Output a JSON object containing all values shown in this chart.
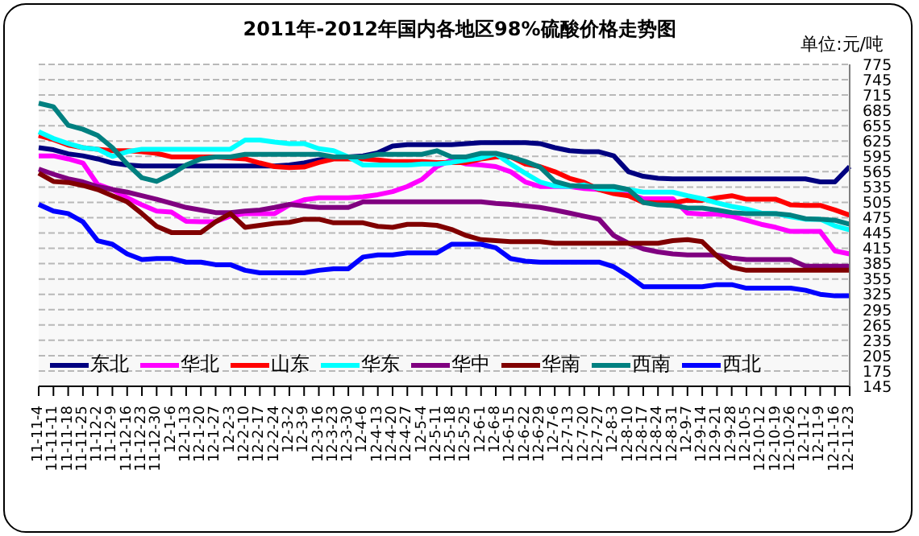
{
  "chart_data": {
    "type": "line",
    "title": "2011年-2012年国内各地区98%硫酸价格走势图",
    "annotations": [
      "单位:元/吨"
    ],
    "categories": [
      "11-11-4",
      "11-11-11",
      "11-11-18",
      "11-11-25",
      "11-12-2",
      "11-12-9",
      "11-12-16",
      "11-12-23",
      "11-12-30",
      "12-1-6",
      "12-1-13",
      "12-1-20",
      "12-1-27",
      "12-2-3",
      "12-2-10",
      "12-2-17",
      "12-2-24",
      "12-3-2",
      "12-3-9",
      "12-3-16",
      "12-3-23",
      "12-3-30",
      "12-4-6",
      "12-4-13",
      "12-4-20",
      "12-4-27",
      "12-5-4",
      "12-5-11",
      "12-5-18",
      "12-5-25",
      "12-6-1",
      "12-6-8",
      "12-6-15",
      "12-6-22",
      "12-6-29",
      "12-7-6",
      "12-7-13",
      "12-7-20",
      "12-7-27",
      "12-8-3",
      "12-8-10",
      "12-8-17",
      "12-8-24",
      "12-8-31",
      "12-9-7",
      "12-9-14",
      "12-9-21",
      "12-9-28",
      "12-10-5",
      "12-10-12",
      "12-10-19",
      "12-10-26",
      "12-11-2",
      "12-11-9",
      "12-11-16",
      "12-11-23"
    ],
    "series": [
      {
        "name": "东北",
        "color": "#000080",
        "values": [
          612,
          608,
          600,
          596,
          590,
          582,
          578,
          576,
          576,
          576,
          576,
          576,
          576,
          576,
          576,
          576,
          576,
          578,
          582,
          588,
          592,
          594,
          596,
          602,
          615,
          618,
          618,
          618,
          618,
          620,
          622,
          622,
          622,
          622,
          620,
          612,
          606,
          604,
          604,
          596,
          565,
          556,
          552,
          551,
          551,
          551,
          551,
          551,
          551,
          551,
          551,
          551,
          551,
          545,
          545,
          575
        ]
      },
      {
        "name": "华北",
        "color": "#ff00ff",
        "values": [
          596,
          596,
          590,
          582,
          540,
          530,
          514,
          500,
          488,
          486,
          468,
          467,
          467,
          478,
          483,
          483,
          483,
          500,
          510,
          514,
          514,
          514,
          516,
          520,
          526,
          536,
          550,
          575,
          588,
          580,
          578,
          575,
          565,
          545,
          536,
          536,
          536,
          532,
          530,
          530,
          522,
          512,
          512,
          512,
          484,
          482,
          482,
          478,
          470,
          462,
          456,
          448,
          448,
          448,
          410,
          404
        ]
      },
      {
        "name": "山东",
        "color": "#ff0000",
        "values": [
          636,
          628,
          617,
          612,
          609,
          606,
          606,
          604,
          601,
          594,
          594,
          594,
          594,
          592,
          590,
          582,
          575,
          573,
          574,
          583,
          590,
          590,
          590,
          588,
          585,
          585,
          585,
          583,
          583,
          583,
          590,
          594,
          594,
          580,
          575,
          565,
          552,
          544,
          530,
          522,
          518,
          505,
          504,
          504,
          509,
          509,
          514,
          518,
          511,
          511,
          511,
          500,
          499,
          499,
          490,
          480
        ]
      },
      {
        "name": "华东",
        "color": "#00ffff",
        "values": [
          643,
          630,
          620,
          612,
          609,
          595,
          604,
          609,
          609,
          609,
          609,
          609,
          609,
          609,
          627,
          627,
          623,
          620,
          620,
          610,
          606,
          594,
          578,
          578,
          578,
          578,
          580,
          580,
          583,
          588,
          592,
          600,
          580,
          562,
          545,
          537,
          536,
          539,
          532,
          530,
          530,
          525,
          525,
          525,
          518,
          512,
          504,
          497,
          492,
          484,
          483,
          477,
          472,
          472,
          459,
          451
        ]
      },
      {
        "name": "华中",
        "color": "#800080",
        "values": [
          570,
          560,
          551,
          545,
          536,
          530,
          525,
          518,
          511,
          503,
          495,
          490,
          485,
          485,
          488,
          490,
          495,
          501,
          498,
          495,
          495,
          495,
          506,
          506,
          506,
          506,
          506,
          506,
          506,
          506,
          506,
          503,
          501,
          498,
          495,
          490,
          484,
          478,
          472,
          440,
          425,
          414,
          408,
          404,
          402,
          402,
          402,
          396,
          393,
          393,
          393,
          393,
          380,
          380,
          380,
          380
        ]
      },
      {
        "name": "华南",
        "color": "#800000",
        "values": [
          562,
          546,
          544,
          538,
          530,
          518,
          506,
          483,
          458,
          446,
          446,
          446,
          467,
          483,
          456,
          460,
          464,
          466,
          472,
          472,
          465,
          465,
          465,
          458,
          456,
          462,
          462,
          460,
          452,
          440,
          432,
          430,
          428,
          428,
          428,
          425,
          425,
          425,
          425,
          425,
          425,
          425,
          425,
          430,
          432,
          428,
          400,
          378,
          372,
          372,
          372,
          372,
          372,
          372,
          372,
          372
        ]
      },
      {
        "name": "西南",
        "color": "#008080",
        "values": [
          699,
          692,
          656,
          648,
          636,
          612,
          580,
          553,
          546,
          560,
          578,
          590,
          594,
          594,
          599,
          599,
          599,
          599,
          599,
          599,
          594,
          594,
          594,
          599,
          599,
          599,
          599,
          606,
          594,
          594,
          601,
          601,
          594,
          585,
          574,
          546,
          538,
          536,
          536,
          536,
          530,
          505,
          500,
          499,
          494,
          494,
          490,
          485,
          483,
          483,
          483,
          480,
          473,
          472,
          470,
          462
        ]
      },
      {
        "name": "西北",
        "color": "#0000ff",
        "values": [
          501,
          488,
          483,
          467,
          430,
          423,
          404,
          393,
          395,
          395,
          388,
          388,
          383,
          383,
          372,
          367,
          367,
          367,
          367,
          372,
          375,
          375,
          398,
          402,
          402,
          406,
          406,
          406,
          423,
          423,
          423,
          416,
          395,
          390,
          388,
          388,
          388,
          388,
          388,
          379,
          361,
          340,
          340,
          340,
          340,
          340,
          344,
          344,
          337,
          337,
          337,
          337,
          333,
          325,
          322,
          322
        ]
      }
    ],
    "ylim": [
      145,
      775
    ],
    "yticks": [
      145,
      175,
      205,
      235,
      265,
      295,
      325,
      355,
      385,
      415,
      445,
      475,
      505,
      535,
      565,
      595,
      625,
      655,
      685,
      715,
      745,
      775
    ],
    "grid": "y",
    "legend": "bottom",
    "marker": "none",
    "line_style": "solid"
  }
}
